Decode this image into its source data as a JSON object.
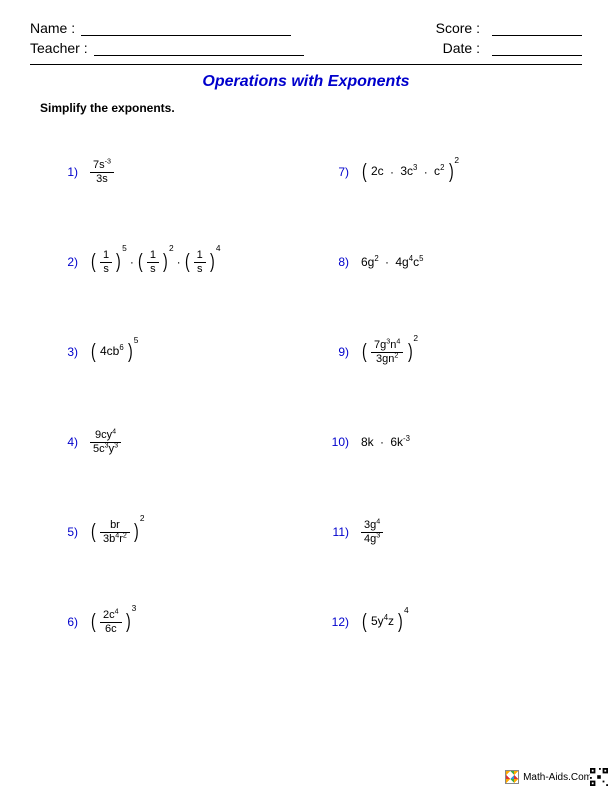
{
  "header": {
    "name_label": "Name :",
    "teacher_label": "Teacher :",
    "score_label": "Score :",
    "date_label": "Date :"
  },
  "title": {
    "text": "Operations with Exponents",
    "color": "#0000cc"
  },
  "instruction": "Simplify the exponents.",
  "number_color": "#0000cc",
  "problems": [
    {
      "n": "1)",
      "type": "frac",
      "num": "7s<sup>-3</sup>",
      "den": "3s"
    },
    {
      "n": "7)",
      "type": "paren",
      "inner": "2c <span class='dot'>·</span> 3c<sup>3</sup> <span class='dot'>·</span> c<sup>2</sup>",
      "exp": "2"
    },
    {
      "n": "2)",
      "type": "tripleparen",
      "a_num": "1",
      "a_den": "s",
      "a_exp": "5",
      "b_num": "1",
      "b_den": "s",
      "b_exp": "2",
      "c_num": "1",
      "c_den": "s",
      "c_exp": "4"
    },
    {
      "n": "8)",
      "type": "plain",
      "inner": "6g<sup>2</sup> <span class='dot'>·</span> 4g<sup>4</sup>c<sup>5</sup>"
    },
    {
      "n": "3)",
      "type": "paren",
      "inner": "4cb<sup>6</sup>",
      "exp": "5"
    },
    {
      "n": "9)",
      "type": "parenfrac",
      "num": "7g<sup>3</sup>n<sup>4</sup>",
      "den": "3gn<sup>2</sup>",
      "exp": "2"
    },
    {
      "n": "4)",
      "type": "frac",
      "num": "9cy<sup>4</sup>",
      "den": "5c<sup>3</sup>y<sup>3</sup>"
    },
    {
      "n": "10)",
      "type": "plain",
      "inner": "8k <span class='dot'>·</span> 6k<sup>-3</sup>"
    },
    {
      "n": "5)",
      "type": "parenfrac",
      "num": "br",
      "den": "3b<sup>4</sup>r<sup>2</sup>",
      "exp": "2"
    },
    {
      "n": "11)",
      "type": "frac",
      "num": "3g<sup>4</sup>",
      "den": "4g<sup>3</sup>"
    },
    {
      "n": "6)",
      "type": "parenfrac",
      "num": "2c<sup>4</sup>",
      "den": "6c",
      "exp": "3"
    },
    {
      "n": "12)",
      "type": "paren",
      "inner": "5y<sup>4</sup>z",
      "exp": "4"
    }
  ],
  "footer": {
    "text": "Math-Aids.Com"
  }
}
